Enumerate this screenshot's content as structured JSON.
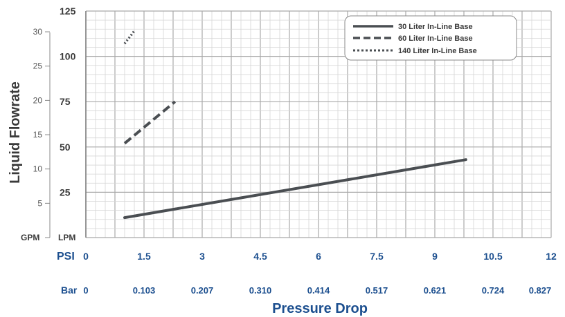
{
  "chart_data": {
    "type": "line",
    "xlabel": "Pressure Drop",
    "ylabel": "Liquid Flowrate",
    "x_unit_primary": "PSI",
    "x_unit_secondary": "Bar",
    "y_unit_primary": "LPM",
    "y_unit_secondary": "GPM",
    "xlim": [
      0,
      12
    ],
    "ylim": [
      0,
      125
    ],
    "x_ticks_psi": [
      "0",
      "1.5",
      "3",
      "4.5",
      "6",
      "7.5",
      "9",
      "10.5",
      "12"
    ],
    "x_ticks_bar": [
      "0",
      "0.103",
      "0.207",
      "0.310",
      "0.414",
      "0.517",
      "0.621",
      "0.724",
      "0.827"
    ],
    "y_ticks_lpm": [
      "25",
      "50",
      "75",
      "100",
      "125"
    ],
    "y_ticks_gpm": [
      "5",
      "10",
      "15",
      "20",
      "25",
      "30"
    ],
    "grid": true,
    "legend_position": "top-right",
    "series": [
      {
        "name": "30 Liter In-Line Base",
        "style": "solid",
        "color": "#4a4e52",
        "x": [
          1.0,
          9.8
        ],
        "y": [
          11,
          43
        ]
      },
      {
        "name": "60 Liter In-Line Base",
        "style": "dashed",
        "color": "#4a4e52",
        "x": [
          1.0,
          2.3
        ],
        "y": [
          52,
          75
        ]
      },
      {
        "name": "140 Liter In-Line Base",
        "style": "dotted",
        "color": "#4a4e52",
        "x": [
          1.0,
          1.25
        ],
        "y": [
          107,
          114
        ]
      }
    ]
  }
}
